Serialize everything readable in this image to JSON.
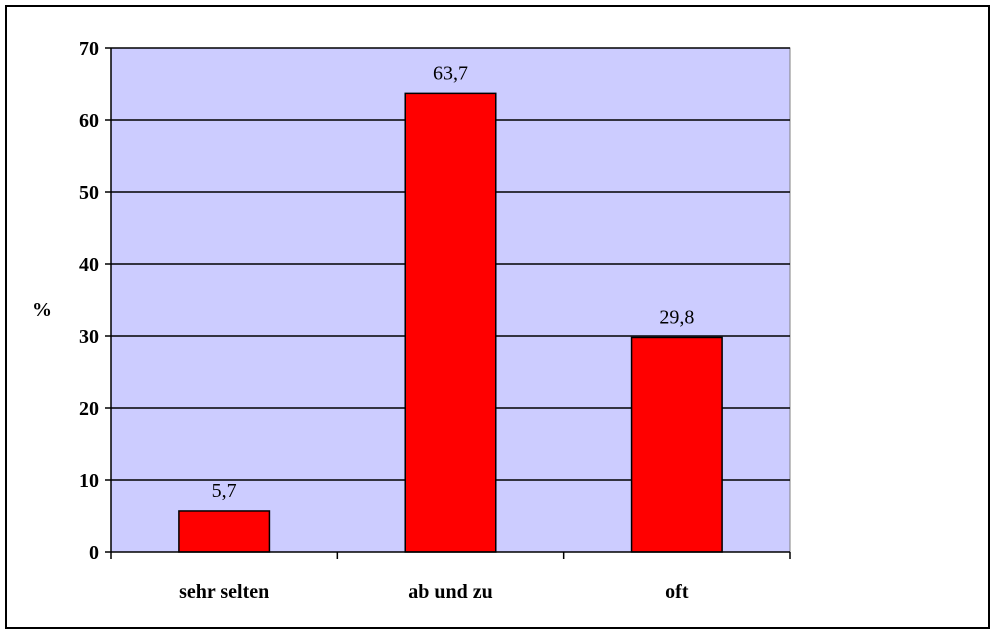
{
  "chart_data": {
    "type": "bar",
    "categories": [
      "sehr selten",
      "ab und zu",
      "oft"
    ],
    "values": [
      5.7,
      63.7,
      29.8
    ],
    "data_labels": [
      "5,7",
      "63,7",
      "29,8"
    ],
    "title": "",
    "xlabel": "",
    "ylabel": "%",
    "ylim": [
      0,
      70
    ],
    "yticks": [
      "0",
      "10",
      "20",
      "30",
      "40",
      "50",
      "60",
      "70"
    ],
    "grid": true,
    "legend": "none",
    "colors": {
      "plot_background": "#ccccff",
      "bar_fill": "#ff0000",
      "bar_stroke": "#000000",
      "gridline": "#000000"
    }
  }
}
